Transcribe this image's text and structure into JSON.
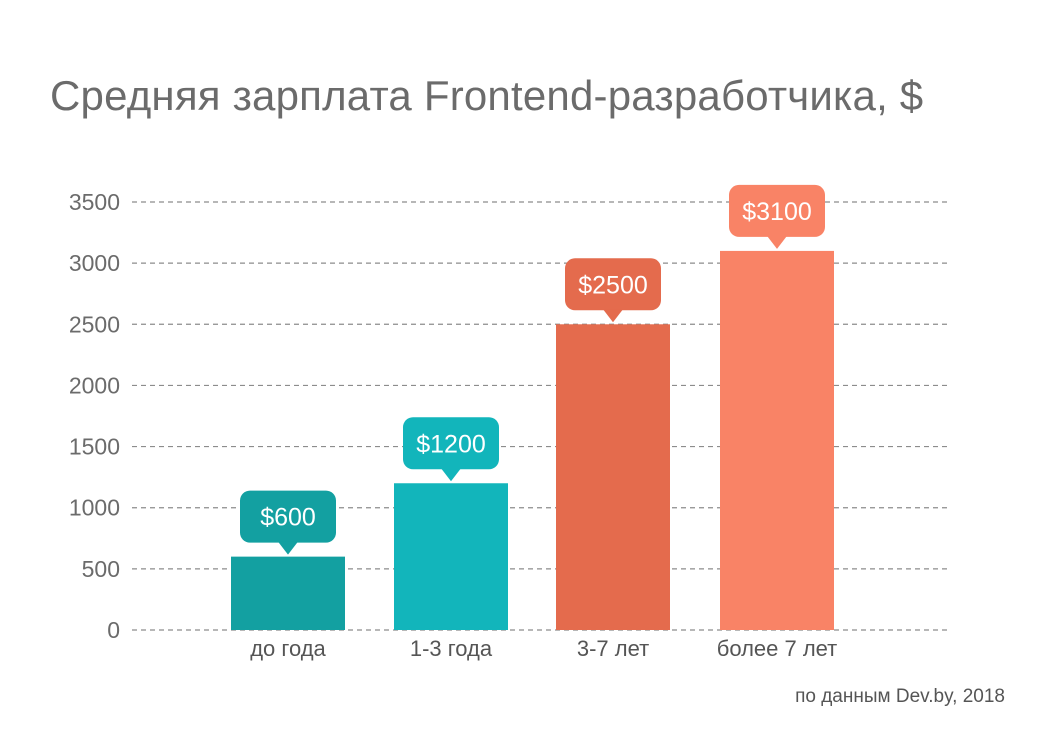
{
  "title": "Средняя зарплата Frontend-разработчика, $",
  "source": "по данным Dev.by, 2018",
  "chart_data": {
    "type": "bar",
    "title": "Средняя зарплата Frontend-разработчика, $",
    "xlabel": "",
    "ylabel": "",
    "categories": [
      "до года",
      "1-3 года",
      "3-7 лет",
      "более 7 лет"
    ],
    "values": [
      600,
      1200,
      2500,
      3100
    ],
    "data_labels": [
      "$600",
      "$1200",
      "$2500",
      "$3100"
    ],
    "colors": [
      "#13a0a1",
      "#12b5bb",
      "#e46b4d",
      "#f98366"
    ],
    "ylim": [
      0,
      3500
    ],
    "yticks": [
      0,
      500,
      1000,
      1500,
      2000,
      2500,
      3000,
      3500
    ],
    "grid": true,
    "grid_style": "dashed",
    "legend": false
  }
}
